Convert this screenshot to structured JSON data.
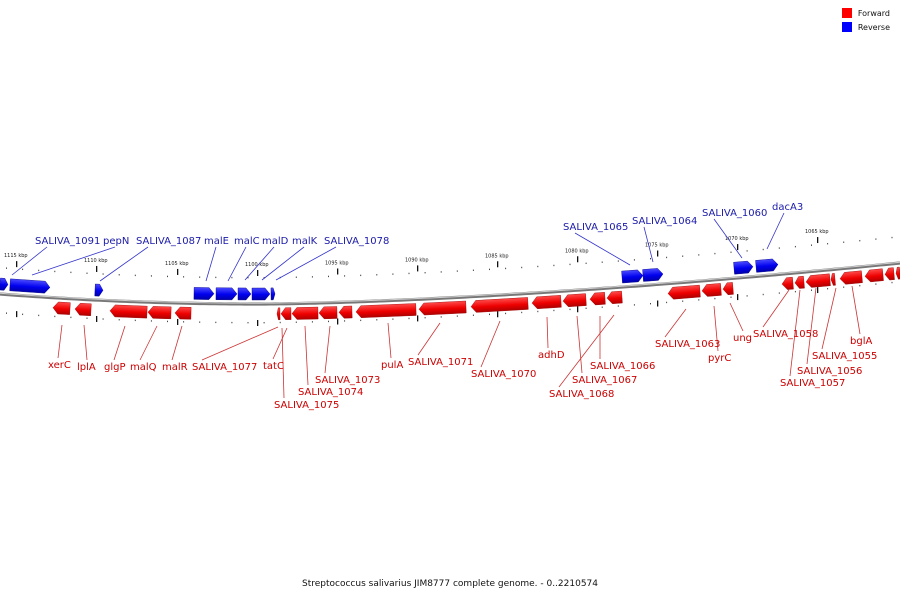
{
  "caption": "Streptococcus salivarius JIM8777 complete genome. - 0..2210574",
  "legend": [
    {
      "label": "Forward",
      "color": "#ff0000"
    },
    {
      "label": "Reverse",
      "color": "#0000ff"
    }
  ],
  "ticks": [
    "1115 kbp",
    "1110 kbp",
    "1105 kbp",
    "1100 kbp",
    "1095 kbp",
    "1090 kbp",
    "1085 kbp",
    "1080 kbp",
    "1075 kbp",
    "1070 kbp",
    "1065 kbp"
  ],
  "reverse_labels": [
    "SALIVA_1091",
    "pepN",
    "SALIVA_1087",
    "malE",
    "malC",
    "malD",
    "malK",
    "SALIVA_1078",
    "SALIVA_1065",
    "SALIVA_1064",
    "SALIVA_1060",
    "dacA3"
  ],
  "forward_labels": [
    "xerC",
    "lplA",
    "glgP",
    "malQ",
    "malR",
    "SALIVA_1077",
    "tatC",
    "SALIVA_1073",
    "SALIVA_1074",
    "SALIVA_1075",
    "pulA",
    "SALIVA_1071",
    "SALIVA_1070",
    "adhD",
    "SALIVA_1066",
    "SALIVA_1067",
    "SALIVA_1068",
    "SALIVA_1063",
    "pyrC",
    "ung",
    "SALIVA_1058",
    "bglA",
    "SALIVA_1055",
    "SALIVA_1056",
    "SALIVA_1057"
  ]
}
